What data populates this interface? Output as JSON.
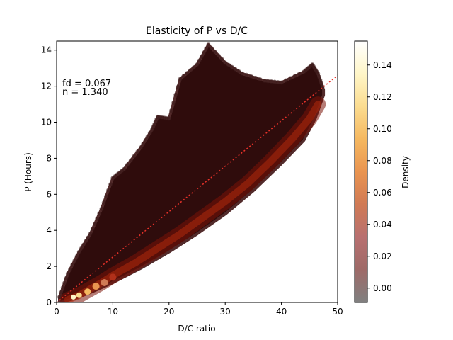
{
  "chart_data": {
    "type": "scatter",
    "title": "Elasticity of P vs D/C",
    "xlabel": "D/C ratio",
    "ylabel": "P (Hours)",
    "xlim": [
      0,
      50
    ],
    "ylim": [
      0,
      14.5
    ],
    "xticks": [
      0,
      10,
      20,
      30,
      40,
      50
    ],
    "yticks": [
      0,
      2,
      4,
      6,
      8,
      10,
      12,
      14
    ],
    "annotations": [
      "fd = 0.067",
      "n = 1.340"
    ],
    "grid": false,
    "fit_line": {
      "style": "dotted",
      "color": "#e8322a",
      "points": [
        [
          0,
          0
        ],
        [
          50,
          12.6
        ]
      ]
    },
    "point_cloud": {
      "upper_envelope": [
        [
          0.5,
          0.3
        ],
        [
          2,
          1.6
        ],
        [
          4,
          2.8
        ],
        [
          6,
          3.8
        ],
        [
          8,
          5.2
        ],
        [
          10,
          6.9
        ],
        [
          12,
          7.4
        ],
        [
          15,
          8.6
        ],
        [
          17,
          9.6
        ],
        [
          18,
          10.3
        ],
        [
          20,
          10.2
        ],
        [
          22,
          12.4
        ],
        [
          25,
          13.2
        ],
        [
          27,
          14.3
        ],
        [
          30,
          13.3
        ],
        [
          33,
          12.7
        ],
        [
          37,
          12.3
        ],
        [
          40,
          12.2
        ],
        [
          44,
          12.8
        ],
        [
          45.5,
          13.2
        ],
        [
          46.5,
          12.7
        ],
        [
          47.5,
          11.8
        ]
      ],
      "lower_envelope": [
        [
          47.5,
          11.5
        ],
        [
          46,
          10.2
        ],
        [
          44,
          9.0
        ],
        [
          40,
          7.7
        ],
        [
          35,
          6.2
        ],
        [
          30,
          4.9
        ],
        [
          25,
          3.8
        ],
        [
          20,
          2.8
        ],
        [
          15,
          1.9
        ],
        [
          10,
          1.1
        ],
        [
          6,
          0.55
        ],
        [
          3,
          0.2
        ],
        [
          0.5,
          0.0
        ]
      ],
      "dense_ridge": [
        [
          2,
          0.15
        ],
        [
          4,
          0.4
        ],
        [
          6,
          0.75
        ],
        [
          8,
          1.1
        ],
        [
          10,
          1.5
        ],
        [
          14,
          2.2
        ],
        [
          18,
          3.0
        ],
        [
          22,
          3.8
        ],
        [
          26,
          4.7
        ],
        [
          30,
          5.6
        ],
        [
          34,
          6.6
        ],
        [
          38,
          7.8
        ],
        [
          42,
          9.1
        ],
        [
          45,
          10.2
        ],
        [
          46.5,
          11.0
        ]
      ]
    },
    "colorbar": {
      "label": "Density",
      "min": -0.009,
      "max": 0.155,
      "ticks": [
        "0.00",
        "0.02",
        "0.04",
        "0.06",
        "0.08",
        "0.10",
        "0.12",
        "0.14"
      ],
      "colors": [
        "#808080",
        "#9e6a68",
        "#b87070",
        "#d07a55",
        "#e99450",
        "#f5b860",
        "#fbdc90",
        "#fff6c8",
        "#ffffff"
      ]
    }
  }
}
